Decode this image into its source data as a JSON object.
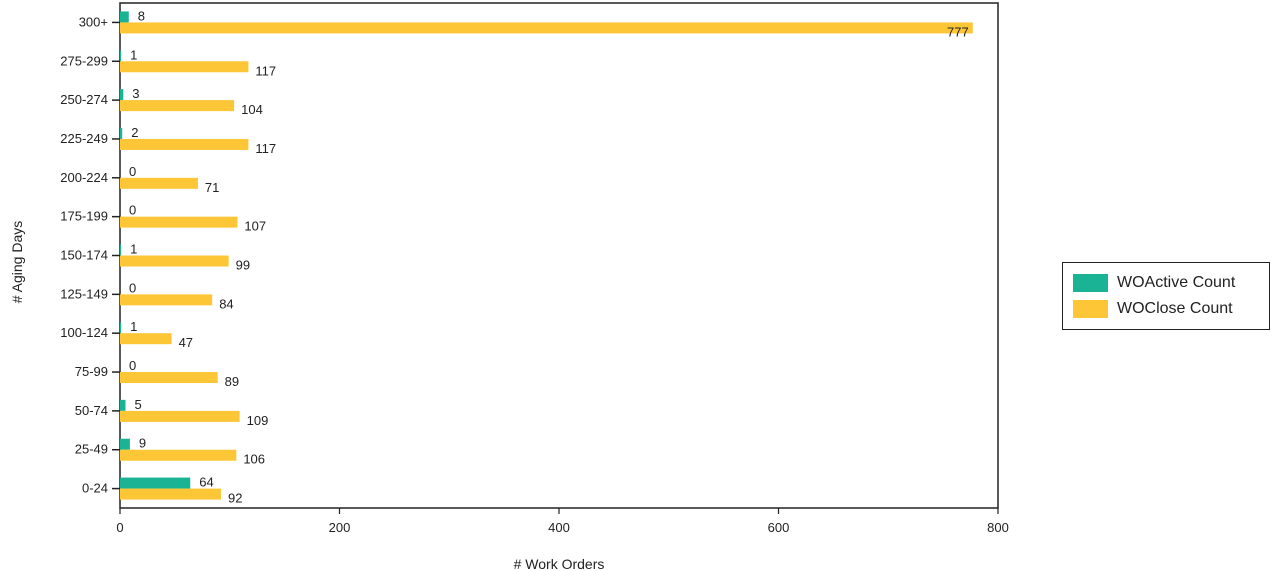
{
  "chart_data": {
    "type": "bar",
    "orientation": "horizontal",
    "categories": [
      "300+",
      "275-299",
      "250-274",
      "225-249",
      "200-224",
      "175-199",
      "150-174",
      "125-149",
      "100-124",
      "75-99",
      "50-74",
      "25-49",
      "0-24"
    ],
    "series": [
      {
        "name": "WOActive Count",
        "color": "#1ab394",
        "values": [
          8,
          1,
          3,
          2,
          0,
          0,
          1,
          0,
          1,
          0,
          5,
          9,
          64
        ]
      },
      {
        "name": "WOClose Count",
        "color": "#fcc636",
        "values": [
          777,
          117,
          104,
          117,
          71,
          107,
          99,
          84,
          47,
          89,
          109,
          106,
          92
        ]
      }
    ],
    "xlabel": "# Work Orders",
    "ylabel": "# Aging Days",
    "xlim": [
      0,
      800
    ],
    "xticks": [
      0,
      200,
      400,
      600,
      800
    ],
    "grid": false,
    "legend_position": "right"
  }
}
